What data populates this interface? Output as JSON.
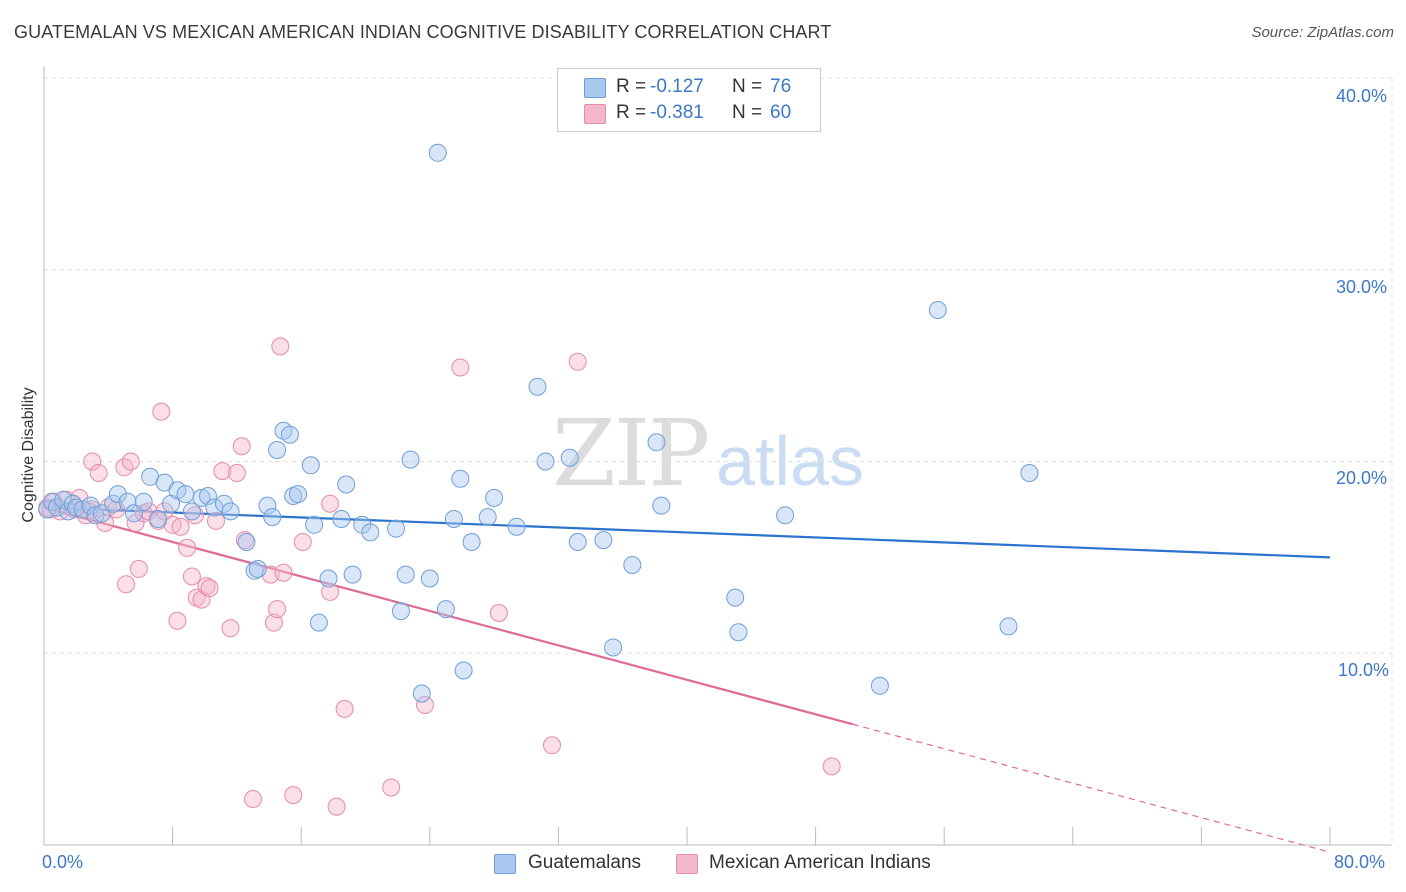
{
  "header": {
    "title": "GUATEMALAN VS MEXICAN AMERICAN INDIAN COGNITIVE DISABILITY CORRELATION CHART",
    "source": "Source: ZipAtlas.com"
  },
  "watermark": {
    "zip": "ZIP",
    "atlas": "atlas"
  },
  "legend": {
    "r_label": "R =",
    "n_label": "N =",
    "entries": [
      {
        "r": "-0.127",
        "n": "76",
        "color": "#a8c8f0"
      },
      {
        "r": "-0.381",
        "n": "60",
        "color": "#f5b8cb"
      }
    ]
  },
  "bottom_legend": [
    "Guatemalans",
    "Mexican American Indians"
  ],
  "colors": {
    "blue_fill": "#a8c8f0",
    "blue_stroke": "#6f9fd8",
    "blue_line": "#2b73cc",
    "pink_fill": "#f5b8cb",
    "pink_stroke": "#e88aa8",
    "pink_line": "#e06a96",
    "tick_text": "#3d78c9",
    "grid": "#e2e2e2"
  },
  "chart_data": {
    "type": "scatter",
    "title": "GUATEMALAN VS MEXICAN AMERICAN INDIAN COGNITIVE DISABILITY CORRELATION CHART",
    "xlabel": "",
    "ylabel": "Cognitive Disability",
    "xlim": [
      0,
      80
    ],
    "ylim": [
      0,
      40
    ],
    "x_tick_labels": [
      "0.0%",
      "80.0%"
    ],
    "y_ticks": [
      10,
      20,
      30,
      40
    ],
    "y_tick_labels": [
      "10.0%",
      "20.0%",
      "30.0%",
      "40.0%"
    ],
    "grid": true,
    "legend_position": "top-center",
    "series": [
      {
        "name": "Guatemalans",
        "r": -0.127,
        "n": 76,
        "trend": {
          "x": [
            0,
            80
          ],
          "y": [
            17.6,
            15.0
          ],
          "dashed_x": []
        },
        "points": [
          [
            0.2,
            17.5
          ],
          [
            0.5,
            17.9
          ],
          [
            0.8,
            17.6
          ],
          [
            1.2,
            18.0
          ],
          [
            1.5,
            17.4
          ],
          [
            1.8,
            17.8
          ],
          [
            2.0,
            17.6
          ],
          [
            2.4,
            17.5
          ],
          [
            2.9,
            17.7
          ],
          [
            3.2,
            17.2
          ],
          [
            3.6,
            17.3
          ],
          [
            4.3,
            17.8
          ],
          [
            4.6,
            18.3
          ],
          [
            5.2,
            17.9
          ],
          [
            5.6,
            17.3
          ],
          [
            6.2,
            17.9
          ],
          [
            6.6,
            19.2
          ],
          [
            7.1,
            17.0
          ],
          [
            7.5,
            18.9
          ],
          [
            7.9,
            17.8
          ],
          [
            8.3,
            18.5
          ],
          [
            8.8,
            18.3
          ],
          [
            9.2,
            17.4
          ],
          [
            9.8,
            18.1
          ],
          [
            10.2,
            18.2
          ],
          [
            10.6,
            17.6
          ],
          [
            11.2,
            17.8
          ],
          [
            11.6,
            17.4
          ],
          [
            12.6,
            15.8
          ],
          [
            13.1,
            14.3
          ],
          [
            13.3,
            14.4
          ],
          [
            13.9,
            17.7
          ],
          [
            14.2,
            17.1
          ],
          [
            14.5,
            20.6
          ],
          [
            14.9,
            21.6
          ],
          [
            15.3,
            21.4
          ],
          [
            15.5,
            18.2
          ],
          [
            15.8,
            18.3
          ],
          [
            16.6,
            19.8
          ],
          [
            16.8,
            16.7
          ],
          [
            17.7,
            13.9
          ],
          [
            17.1,
            11.6
          ],
          [
            18.5,
            17.0
          ],
          [
            18.8,
            18.8
          ],
          [
            19.2,
            14.1
          ],
          [
            19.8,
            16.7
          ],
          [
            20.3,
            16.3
          ],
          [
            21.9,
            16.5
          ],
          [
            22.2,
            12.2
          ],
          [
            22.5,
            14.1
          ],
          [
            22.8,
            20.1
          ],
          [
            23.5,
            7.9
          ],
          [
            24.0,
            13.9
          ],
          [
            24.5,
            36.1
          ],
          [
            25.0,
            12.3
          ],
          [
            25.5,
            17.0
          ],
          [
            25.9,
            19.1
          ],
          [
            26.1,
            9.1
          ],
          [
            26.6,
            15.8
          ],
          [
            27.6,
            17.1
          ],
          [
            28.0,
            18.1
          ],
          [
            29.4,
            16.6
          ],
          [
            30.7,
            23.9
          ],
          [
            31.2,
            20.0
          ],
          [
            32.7,
            20.2
          ],
          [
            33.2,
            15.8
          ],
          [
            34.8,
            15.9
          ],
          [
            35.4,
            10.3
          ],
          [
            36.6,
            14.6
          ],
          [
            38.1,
            21.0
          ],
          [
            38.4,
            17.7
          ],
          [
            43.0,
            12.9
          ],
          [
            43.2,
            11.1
          ],
          [
            46.1,
            17.2
          ],
          [
            52.0,
            8.3
          ],
          [
            55.6,
            27.9
          ],
          [
            60.0,
            11.4
          ],
          [
            61.3,
            19.4
          ]
        ]
      },
      {
        "name": "Mexican American Indians",
        "r": -0.381,
        "n": 60,
        "trend": {
          "x": [
            0,
            50.3
          ],
          "y": [
            17.6,
            6.3
          ],
          "dashed_x": [
            50.3,
            80
          ]
        },
        "points": [
          [
            0.2,
            17.6
          ],
          [
            0.6,
            17.9
          ],
          [
            1.0,
            17.4
          ],
          [
            1.4,
            18.0
          ],
          [
            1.9,
            17.5
          ],
          [
            2.2,
            18.1
          ],
          [
            2.6,
            17.2
          ],
          [
            3.0,
            17.5
          ],
          [
            3.0,
            20.0
          ],
          [
            3.4,
            19.4
          ],
          [
            3.8,
            16.8
          ],
          [
            4.0,
            17.6
          ],
          [
            4.5,
            17.5
          ],
          [
            5.0,
            19.7
          ],
          [
            5.1,
            13.6
          ],
          [
            5.4,
            20.0
          ],
          [
            5.7,
            16.8
          ],
          [
            5.9,
            14.4
          ],
          [
            6.2,
            17.3
          ],
          [
            6.5,
            17.4
          ],
          [
            7.1,
            16.9
          ],
          [
            7.3,
            22.6
          ],
          [
            7.5,
            17.4
          ],
          [
            8.0,
            16.7
          ],
          [
            8.3,
            11.7
          ],
          [
            8.5,
            16.6
          ],
          [
            8.9,
            15.5
          ],
          [
            9.2,
            14.0
          ],
          [
            9.5,
            12.9
          ],
          [
            9.8,
            12.8
          ],
          [
            10.1,
            13.5
          ],
          [
            10.3,
            13.4
          ],
          [
            10.7,
            16.9
          ],
          [
            11.1,
            19.5
          ],
          [
            11.6,
            11.3
          ],
          [
            12.0,
            19.4
          ],
          [
            12.3,
            20.8
          ],
          [
            12.5,
            15.9
          ],
          [
            13.0,
            2.4
          ],
          [
            14.1,
            14.1
          ],
          [
            14.3,
            11.6
          ],
          [
            14.5,
            12.3
          ],
          [
            14.7,
            26.0
          ],
          [
            14.9,
            14.2
          ],
          [
            15.5,
            2.6
          ],
          [
            16.1,
            15.8
          ],
          [
            17.8,
            17.8
          ],
          [
            17.8,
            13.2
          ],
          [
            18.2,
            2.0
          ],
          [
            18.7,
            7.1
          ],
          [
            21.6,
            3.0
          ],
          [
            23.7,
            7.3
          ],
          [
            25.9,
            24.9
          ],
          [
            28.3,
            12.1
          ],
          [
            31.6,
            5.2
          ],
          [
            33.2,
            25.2
          ],
          [
            49.0,
            4.1
          ],
          [
            0.4,
            17.5
          ],
          [
            2.8,
            17.4
          ],
          [
            9.4,
            17.2
          ]
        ]
      }
    ]
  }
}
